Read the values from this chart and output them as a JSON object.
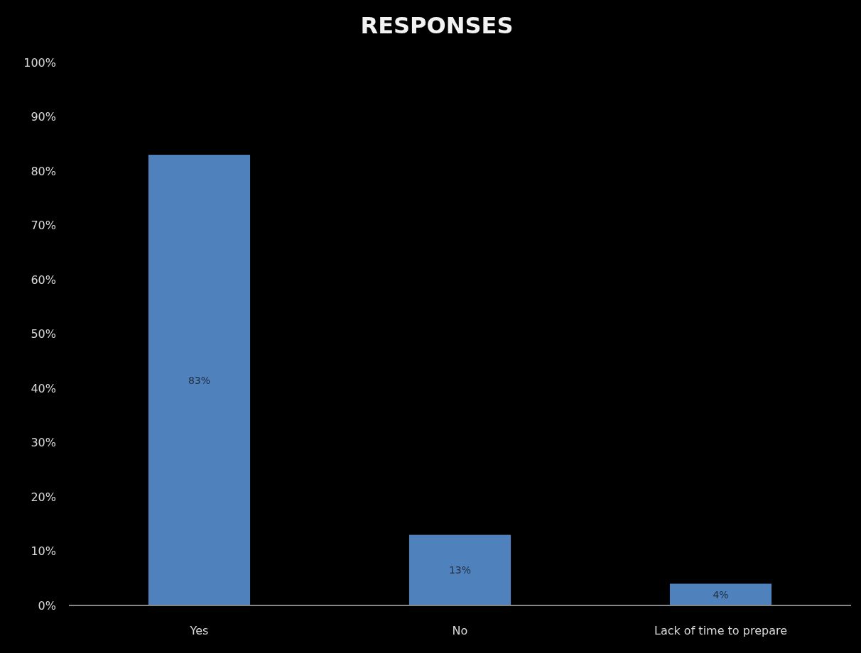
{
  "chart_data": {
    "type": "bar",
    "title": "RESPONSES",
    "categories": [
      "Yes",
      "No",
      "Lack of time to prepare"
    ],
    "values": [
      83,
      13,
      4
    ],
    "color": "#4f81bd",
    "value_labels": [
      "83%",
      "13%",
      "4%"
    ],
    "ylim": [
      0,
      100
    ],
    "yticks": [
      {
        "value": 0,
        "label": "0%"
      },
      {
        "value": 10,
        "label": "10%"
      },
      {
        "value": 20,
        "label": "20%"
      },
      {
        "value": 30,
        "label": "30%"
      },
      {
        "value": 40,
        "label": "40%"
      },
      {
        "value": 50,
        "label": "50%"
      },
      {
        "value": 60,
        "label": "60%"
      },
      {
        "value": 70,
        "label": "70%"
      },
      {
        "value": 80,
        "label": "80%"
      },
      {
        "value": 90,
        "label": "90%"
      },
      {
        "value": 100,
        "label": "100%"
      }
    ],
    "grid": false
  }
}
